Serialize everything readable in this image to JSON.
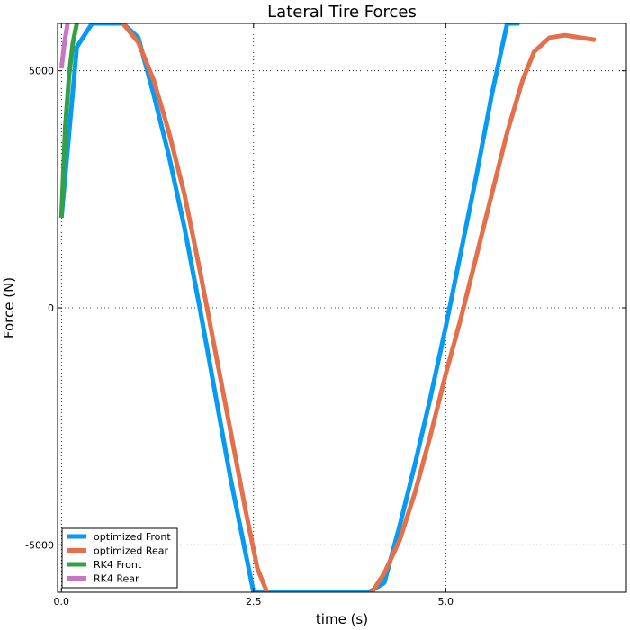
{
  "chart_data": {
    "type": "line",
    "title": "Lateral Tire Forces",
    "xlabel": "time (s)",
    "ylabel": "Force (N)",
    "xlim": [
      -0.05,
      7.35
    ],
    "ylim": [
      -6000,
      6000
    ],
    "xticks": [
      0.0,
      2.5,
      5.0
    ],
    "xtick_labels": [
      "0.0",
      "2.5",
      "5.0"
    ],
    "yticks": [
      -5000,
      0,
      5000
    ],
    "ytick_labels": [
      "-5000",
      "0",
      "5000"
    ],
    "grid": true,
    "legend_position": "bottom-left",
    "series": [
      {
        "name": "optimized Front",
        "color": "#069af3",
        "x": [
          0.0,
          0.2,
          0.4,
          0.6,
          0.8,
          1.0,
          1.2,
          1.4,
          1.6,
          1.8,
          2.0,
          2.2,
          2.4,
          2.5,
          2.6,
          2.8,
          3.2,
          3.6,
          4.0,
          4.2,
          4.4,
          4.6,
          4.8,
          5.0,
          5.2,
          5.4,
          5.6,
          5.8,
          5.96
        ],
        "y": [
          1900,
          5500,
          6000,
          6000,
          6000,
          5700,
          4500,
          3200,
          1700,
          0,
          -1800,
          -3600,
          -5200,
          -6000,
          -6000,
          -6000,
          -6000,
          -6000,
          -6000,
          -5800,
          -4600,
          -3300,
          -1900,
          -400,
          1200,
          2800,
          4500,
          6000,
          6000
        ]
      },
      {
        "name": "optimized Rear",
        "color": "#e3704a",
        "x": [
          0.8,
          1.0,
          1.2,
          1.4,
          1.6,
          1.8,
          2.0,
          2.2,
          2.4,
          2.55,
          2.7,
          2.85,
          3.0,
          3.4,
          3.6,
          3.8,
          4.0,
          4.2,
          4.4,
          4.6,
          4.8,
          5.0,
          5.2,
          5.4,
          5.6,
          5.8,
          6.0,
          6.15,
          6.35,
          6.55,
          6.75,
          6.95
        ],
        "y": [
          6000,
          5600,
          4800,
          3700,
          2400,
          800,
          -900,
          -2600,
          -4300,
          -5500,
          -6100,
          -6500,
          -6600,
          -6600,
          -6550,
          -6450,
          -6100,
          -5600,
          -4900,
          -3900,
          -2700,
          -1400,
          -200,
          1100,
          2400,
          3700,
          4800,
          5400,
          5700,
          5750,
          5700,
          5650
        ]
      },
      {
        "name": "RK4 Front",
        "color": "#34a045",
        "x": [
          0.0,
          0.05,
          0.1,
          0.15,
          0.2
        ],
        "y": [
          1900,
          3800,
          4900,
          5600,
          6000
        ]
      },
      {
        "name": "RK4 Rear",
        "color": "#c875c4",
        "x": [
          0.0,
          0.04,
          0.08
        ],
        "y": [
          5050,
          5600,
          6000
        ]
      }
    ]
  }
}
